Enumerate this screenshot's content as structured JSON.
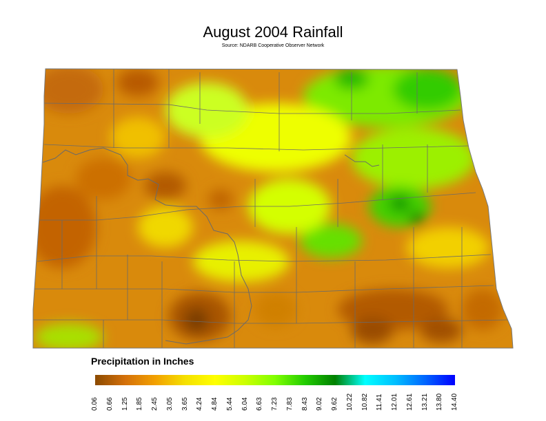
{
  "title": "August 2004 Rainfall",
  "subtitle": "Source: NDARB Cooperative Observer Network",
  "legend": {
    "title": "Precipitation in Inches",
    "ticks": [
      "0.06",
      "0.66",
      "1.25",
      "1.85",
      "2.45",
      "3.05",
      "3.65",
      "4.24",
      "4.84",
      "5.44",
      "6.04",
      "6.63",
      "7.23",
      "7.83",
      "8.43",
      "9.02",
      "9.62",
      "10.22",
      "10.82",
      "11.41",
      "12.01",
      "12.61",
      "13.21",
      "13.80",
      "14.40"
    ],
    "colors": [
      "#8b4a00",
      "#d4700a",
      "#f2a000",
      "#f5e000",
      "#ffff00",
      "#ccff00",
      "#80ff00",
      "#22cc00",
      "#008000",
      "#00ffff",
      "#00bfff",
      "#0066ff",
      "#0000ff"
    ]
  },
  "map": {
    "region": "North Dakota",
    "boundary_color": "#555555"
  }
}
